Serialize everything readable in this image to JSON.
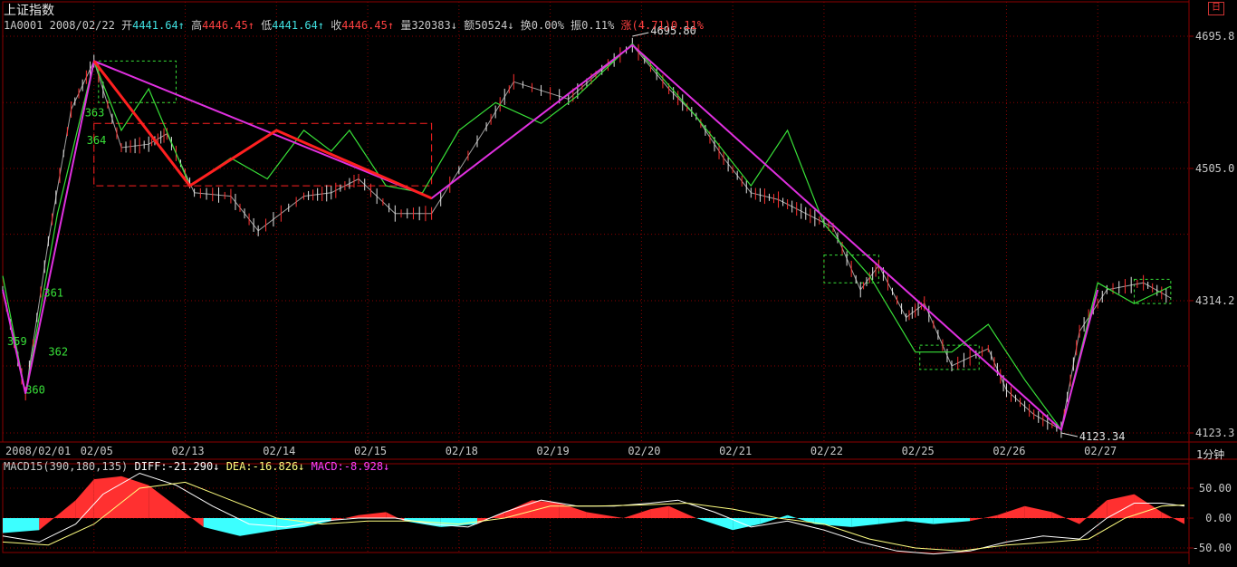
{
  "title": "上证指数",
  "info": {
    "code": "1A0001",
    "date": "2008/02/22",
    "open_label": "开",
    "open": "4441.64",
    "high_label": "高",
    "high": "4446.45",
    "low_label": "低",
    "low": "4441.64",
    "close_label": "收",
    "close": "4446.45",
    "vol_label": "量",
    "vol": "320383",
    "amt_label": "额",
    "amt": "50524",
    "turnover_label": "换",
    "turnover": "0.00%",
    "amp_label": "振",
    "amp": "0.11%",
    "chg_label": "涨",
    "chg": "(4.71)0.11%"
  },
  "corner_button": "日",
  "period_label": "1分钟",
  "colors": {
    "bg": "#000000",
    "grid": "#8b0000",
    "axis_text": "#c8c8c8",
    "up": "#ff3030",
    "down": "#3cffff",
    "zig_green": "#38e038",
    "magenta": "#e030e0",
    "red_trend": "#ff2020",
    "diff_line": "#ffffff",
    "dea_line": "#ffff80",
    "info_cyan": "#40e0e0",
    "info_red": "#ff4040",
    "magenta_text": "#ff40ff"
  },
  "chart_data": [
    {
      "type": "line",
      "x_categories": [
        "2008/02/01",
        "02/05",
        "02/13",
        "02/14",
        "02/15",
        "02/18",
        "02/19",
        "02/20",
        "02/21",
        "02/22",
        "02/25",
        "02/26",
        "02/27"
      ],
      "y_ticks": [
        "4695.8",
        "4505.0",
        "4314.2",
        "4123.3"
      ],
      "ylim": [
        4123.3,
        4695.8
      ],
      "annotations": {
        "high": "4695.80",
        "low": "4123.34",
        "wave_labels": [
          "359",
          "360",
          "361",
          "362",
          "363",
          "364"
        ]
      },
      "price_path": [
        [
          0.0,
          4330
        ],
        [
          0.25,
          4180
        ],
        [
          0.5,
          4400
        ],
        [
          0.75,
          4590
        ],
        [
          1.0,
          4660
        ],
        [
          1.3,
          4535
        ],
        [
          1.6,
          4540
        ],
        [
          1.8,
          4555
        ],
        [
          2.1,
          4470
        ],
        [
          2.5,
          4465
        ],
        [
          2.8,
          4415
        ],
        [
          3.3,
          4465
        ],
        [
          3.6,
          4470
        ],
        [
          3.9,
          4490
        ],
        [
          4.3,
          4440
        ],
        [
          4.7,
          4440
        ],
        [
          5.3,
          4565
        ],
        [
          5.6,
          4630
        ],
        [
          6.2,
          4605
        ],
        [
          6.5,
          4640
        ],
        [
          6.9,
          4683
        ],
        [
          7.3,
          4620
        ],
        [
          7.6,
          4580
        ],
        [
          7.9,
          4520
        ],
        [
          8.2,
          4470
        ],
        [
          8.5,
          4460
        ],
        [
          8.8,
          4440
        ],
        [
          9.1,
          4420
        ],
        [
          9.4,
          4330
        ],
        [
          9.6,
          4365
        ],
        [
          9.9,
          4290
        ],
        [
          10.1,
          4310
        ],
        [
          10.4,
          4220
        ],
        [
          10.8,
          4245
        ],
        [
          11.0,
          4185
        ],
        [
          11.3,
          4150
        ],
        [
          11.6,
          4128
        ],
        [
          11.8,
          4270
        ],
        [
          12.1,
          4330
        ],
        [
          12.5,
          4340
        ],
        [
          12.8,
          4318
        ]
      ],
      "zigzag_green": [
        [
          0.0,
          4350
        ],
        [
          0.25,
          4180
        ],
        [
          0.6,
          4440
        ],
        [
          1.0,
          4660
        ],
        [
          1.3,
          4560
        ],
        [
          1.6,
          4620
        ],
        [
          2.05,
          4480
        ],
        [
          2.5,
          4520
        ],
        [
          2.9,
          4490
        ],
        [
          3.3,
          4560
        ],
        [
          3.6,
          4530
        ],
        [
          3.8,
          4560
        ],
        [
          4.2,
          4480
        ],
        [
          4.6,
          4470
        ],
        [
          5.0,
          4560
        ],
        [
          5.4,
          4600
        ],
        [
          5.9,
          4570
        ],
        [
          6.3,
          4610
        ],
        [
          6.9,
          4685
        ],
        [
          7.6,
          4580
        ],
        [
          8.2,
          4480
        ],
        [
          8.6,
          4560
        ],
        [
          9.0,
          4425
        ],
        [
          9.5,
          4350
        ],
        [
          10.0,
          4240
        ],
        [
          10.4,
          4240
        ],
        [
          10.8,
          4280
        ],
        [
          11.2,
          4200
        ],
        [
          11.6,
          4128
        ],
        [
          12.0,
          4340
        ],
        [
          12.4,
          4310
        ],
        [
          12.8,
          4335
        ]
      ],
      "zigzag_magenta": [
        [
          0.0,
          4330
        ],
        [
          0.25,
          4180
        ],
        [
          1.0,
          4660
        ],
        [
          4.7,
          4462
        ],
        [
          6.9,
          4683
        ],
        [
          11.6,
          4128
        ],
        [
          12.0,
          4330
        ]
      ],
      "zigzag_red": [
        [
          1.0,
          4660
        ],
        [
          2.05,
          4480
        ],
        [
          3.0,
          4560
        ],
        [
          4.7,
          4462
        ]
      ],
      "boxes": [
        {
          "x0": 1.0,
          "x1": 4.7,
          "y0": 4480,
          "y1": 4570,
          "color": "red"
        },
        {
          "x0": 1.05,
          "x1": 1.9,
          "y0": 4600,
          "y1": 4660,
          "color": "green"
        },
        {
          "x0": 9.0,
          "x1": 9.6,
          "y0": 4340,
          "y1": 4380,
          "color": "green"
        },
        {
          "x0": 10.05,
          "x1": 10.7,
          "y0": 4215,
          "y1": 4250,
          "color": "green"
        },
        {
          "x0": 12.4,
          "x1": 12.8,
          "y0": 4310,
          "y1": 4345,
          "color": "green"
        }
      ]
    },
    {
      "type": "area",
      "title": "MACD15(390,180,135)",
      "legend": {
        "diff_label": "DIFF:",
        "diff": "-21.290",
        "dea_label": "DEA:",
        "dea": "-16.826",
        "macd_label": "MACD:",
        "macd": "-8.928"
      },
      "y_ticks": [
        "50.00",
        "0.00",
        "-50.00"
      ],
      "ylim": [
        -70,
        70
      ],
      "macd_hist": [
        [
          0,
          -25
        ],
        [
          0.4,
          -20
        ],
        [
          0.8,
          30
        ],
        [
          1.0,
          65
        ],
        [
          1.3,
          70
        ],
        [
          1.6,
          55
        ],
        [
          1.9,
          20
        ],
        [
          2.2,
          -15
        ],
        [
          2.6,
          -30
        ],
        [
          3.0,
          -20
        ],
        [
          3.3,
          -15
        ],
        [
          3.6,
          -5
        ],
        [
          3.9,
          5
        ],
        [
          4.2,
          10
        ],
        [
          4.4,
          -5
        ],
        [
          4.8,
          -15
        ],
        [
          5.2,
          -10
        ],
        [
          5.5,
          10
        ],
        [
          5.8,
          30
        ],
        [
          6.1,
          25
        ],
        [
          6.4,
          10
        ],
        [
          6.8,
          0
        ],
        [
          7.1,
          15
        ],
        [
          7.3,
          20
        ],
        [
          7.6,
          0
        ],
        [
          8.0,
          -20
        ],
        [
          8.3,
          -10
        ],
        [
          8.6,
          5
        ],
        [
          8.9,
          -10
        ],
        [
          9.3,
          -15
        ],
        [
          9.6,
          -10
        ],
        [
          9.9,
          -5
        ],
        [
          10.2,
          -10
        ],
        [
          10.6,
          -5
        ],
        [
          10.9,
          5
        ],
        [
          11.2,
          20
        ],
        [
          11.5,
          10
        ],
        [
          11.8,
          -10
        ],
        [
          12.1,
          30
        ],
        [
          12.4,
          40
        ],
        [
          12.7,
          10
        ],
        [
          12.95,
          -10
        ]
      ],
      "diff_path": [
        [
          0,
          -30
        ],
        [
          0.4,
          -40
        ],
        [
          0.8,
          -10
        ],
        [
          1.1,
          40
        ],
        [
          1.5,
          75
        ],
        [
          1.9,
          55
        ],
        [
          2.3,
          20
        ],
        [
          2.7,
          -10
        ],
        [
          3.1,
          -15
        ],
        [
          3.5,
          -5
        ],
        [
          3.9,
          0
        ],
        [
          4.3,
          0
        ],
        [
          4.7,
          -10
        ],
        [
          5.1,
          -15
        ],
        [
          5.5,
          10
        ],
        [
          5.9,
          30
        ],
        [
          6.3,
          20
        ],
        [
          6.7,
          20
        ],
        [
          7.1,
          25
        ],
        [
          7.4,
          30
        ],
        [
          7.8,
          10
        ],
        [
          8.2,
          -15
        ],
        [
          8.6,
          -5
        ],
        [
          9.0,
          -20
        ],
        [
          9.4,
          -40
        ],
        [
          9.8,
          -55
        ],
        [
          10.2,
          -60
        ],
        [
          10.6,
          -55
        ],
        [
          11.0,
          -40
        ],
        [
          11.4,
          -30
        ],
        [
          11.8,
          -35
        ],
        [
          12.1,
          0
        ],
        [
          12.4,
          25
        ],
        [
          12.7,
          25
        ],
        [
          12.95,
          20
        ]
      ],
      "dea_path": [
        [
          0,
          -40
        ],
        [
          0.5,
          -45
        ],
        [
          1.0,
          -10
        ],
        [
          1.5,
          50
        ],
        [
          2.0,
          60
        ],
        [
          2.5,
          30
        ],
        [
          3.0,
          0
        ],
        [
          3.5,
          -10
        ],
        [
          4.0,
          -5
        ],
        [
          4.5,
          -5
        ],
        [
          5.0,
          -10
        ],
        [
          5.5,
          0
        ],
        [
          6.0,
          20
        ],
        [
          6.5,
          20
        ],
        [
          7.0,
          22
        ],
        [
          7.5,
          25
        ],
        [
          8.0,
          15
        ],
        [
          8.5,
          0
        ],
        [
          9.0,
          -10
        ],
        [
          9.5,
          -35
        ],
        [
          10.0,
          -50
        ],
        [
          10.5,
          -55
        ],
        [
          11.0,
          -45
        ],
        [
          11.5,
          -40
        ],
        [
          11.9,
          -35
        ],
        [
          12.3,
          0
        ],
        [
          12.7,
          20
        ],
        [
          12.95,
          22
        ]
      ]
    }
  ]
}
